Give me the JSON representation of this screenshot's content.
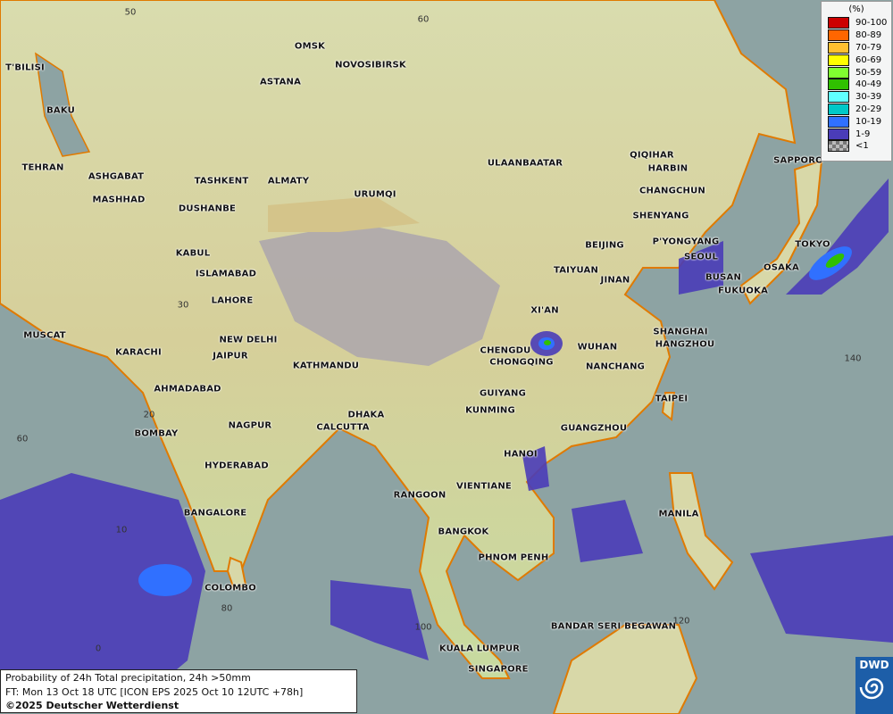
{
  "map": {
    "type": "probability precipitation forecast map",
    "region": "Asia",
    "colors": {
      "ocean": "#8da3a3",
      "precip_low": "#4a3cb8",
      "precip_mid": "#3b6cf0",
      "coast": "#e07a00"
    }
  },
  "cities": [
    "T'BILISI",
    "BAKU",
    "TEHRAN",
    "ASHGABAT",
    "MASHHAD",
    "TASHKENT",
    "ALMATY",
    "DUSHANBE",
    "KABUL",
    "ISLAMABAD",
    "LAHORE",
    "MUSCAT",
    "KARACHI",
    "NEW DELHI",
    "JAIPUR",
    "KATHMANDU",
    "AHMADABAD",
    "NAGPUR",
    "DHAKA",
    "CALCUTTA",
    "BOMBAY",
    "HYDERABAD",
    "BANGALORE",
    "COLOMBO",
    "OMSK",
    "NOVOSIBIRSK",
    "ASTANA",
    "URUMQI",
    "ULAANBAATAR",
    "QIQIHAR",
    "HARBIN",
    "CHANGCHUN",
    "SHENYANG",
    "BEIJING",
    "P'YONGYANG",
    "SEOUL",
    "TAIYUAN",
    "JINAN",
    "BUSAN",
    "FUKUOKA",
    "OSAKA",
    "TOKYO",
    "SAPPORO",
    "XI'AN",
    "SHANGHAI",
    "HANGZHOU",
    "WUHAN",
    "CHENGDU",
    "CHONGQING",
    "NANCHANG",
    "GUIYANG",
    "TAIPEI",
    "KUNMING",
    "GUANGZHOU",
    "HANOI",
    "VIENTIANE",
    "RANGOON",
    "BANGKOK",
    "MANILA",
    "PHNOM PENH",
    "BANDAR SERI BEGAWAN",
    "KUALA LUMPUR",
    "SINGAPORE"
  ],
  "grid_labels": [
    "50",
    "60",
    "30",
    "20",
    "60",
    "140",
    "10",
    "80",
    "100",
    "120",
    "0"
  ],
  "legend": {
    "unit": "(%)",
    "items": [
      {
        "label": "90-100",
        "color": "#cc0000"
      },
      {
        "label": "80-89",
        "color": "#ff6600"
      },
      {
        "label": "70-79",
        "color": "#ffc030"
      },
      {
        "label": "60-69",
        "color": "#ffff00"
      },
      {
        "label": "50-59",
        "color": "#80ff30"
      },
      {
        "label": "40-49",
        "color": "#30c000"
      },
      {
        "label": "30-39",
        "color": "#60ffff"
      },
      {
        "label": "20-29",
        "color": "#00c8c8"
      },
      {
        "label": "10-19",
        "color": "#3070ff"
      },
      {
        "label": "1-9",
        "color": "#4a3cb8"
      },
      {
        "label": "<1",
        "color": "checker"
      }
    ]
  },
  "info": {
    "line1": "Probability of 24h Total precipitation, 24h >50mm",
    "line2": "FT: Mon 13 Oct 18 UTC [ICON EPS 2025 Oct 10 12UTC +78h]",
    "line3": "©2025 Deutscher Wetterdienst"
  },
  "logo": {
    "text": "DWD"
  }
}
